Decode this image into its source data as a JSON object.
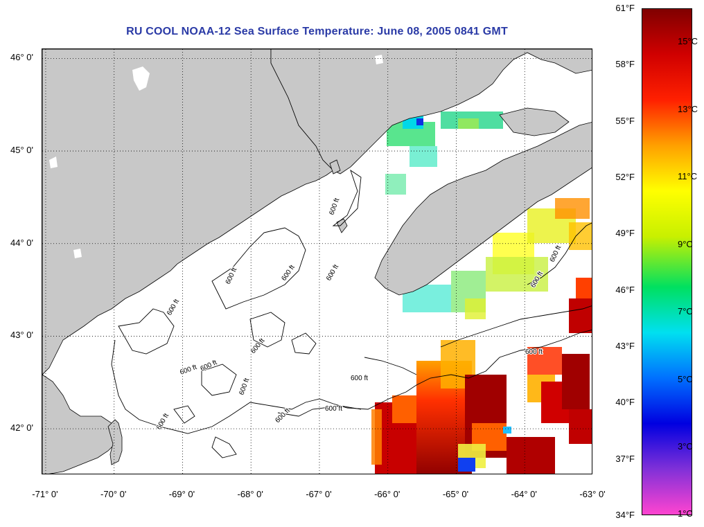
{
  "title": "RU COOL  NOAA-12  Sea Surface Temperature:  June 08, 2005 0841 GMT",
  "map": {
    "lat_labels": [
      {
        "text": "46° 0'",
        "value": 46
      },
      {
        "text": "45° 0'",
        "value": 45
      },
      {
        "text": "44° 0'",
        "value": 44
      },
      {
        "text": "43° 0'",
        "value": 43
      },
      {
        "text": "42° 0'",
        "value": 42
      }
    ],
    "lon_labels": [
      {
        "text": "-71° 0'",
        "value": -71
      },
      {
        "text": "-70° 0'",
        "value": -70
      },
      {
        "text": "-69° 0'",
        "value": -69
      },
      {
        "text": "-68° 0'",
        "value": -68
      },
      {
        "text": "-67° 0'",
        "value": -67
      },
      {
        "text": "-66° 0'",
        "value": -66
      },
      {
        "text": "-65° 0'",
        "value": -65
      },
      {
        "text": "-64° 0'",
        "value": -64
      },
      {
        "text": "-63° 0'",
        "value": -63
      }
    ],
    "lat_range": [
      41.5,
      46.1
    ],
    "lon_range": [
      -71.05,
      -63.0
    ],
    "grid": "dotted",
    "contour_label": "600 ft",
    "land_color": "#c8c8c8",
    "no_data_color": "#ffffff"
  },
  "colorbar": {
    "fahrenheit_labels": [
      "61°F",
      "58°F",
      "55°F",
      "52°F",
      "49°F",
      "46°F",
      "43°F",
      "40°F",
      "37°F",
      "34°F"
    ],
    "celsius_labels": [
      "15°C",
      "13°C",
      "11°C",
      "9°C",
      "7°C",
      "5°C",
      "3°C",
      "1°C"
    ],
    "colors": [
      "#ff44d0",
      "#8030d8",
      "#0000e0",
      "#0070ff",
      "#00e0f0",
      "#00e060",
      "#c8f000",
      "#ffff00",
      "#ffa000",
      "#ff2000",
      "#d00000",
      "#800000"
    ]
  }
}
